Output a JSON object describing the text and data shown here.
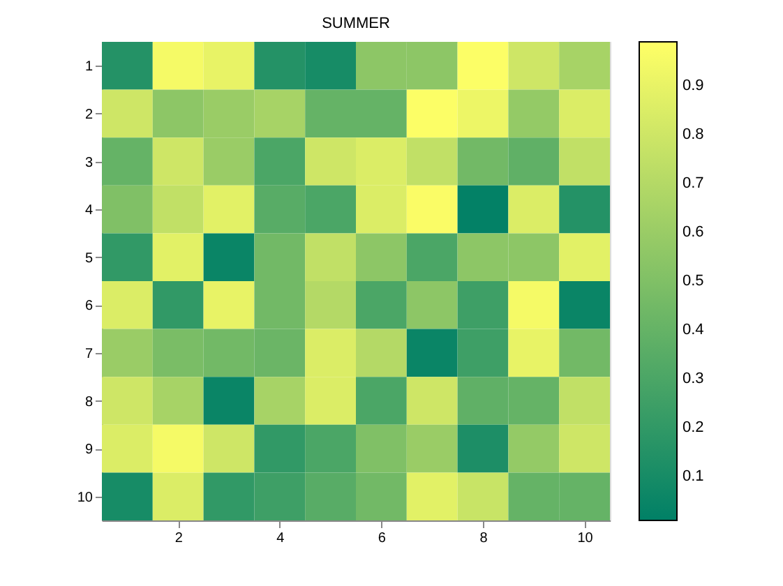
{
  "chart_data": {
    "type": "heatmap",
    "title": "SUMMER",
    "categories": [
      null,
      "2",
      null,
      "4",
      null,
      "6",
      null,
      "8",
      null,
      "10"
    ],
    "y_categories": [
      "1",
      "2",
      "3",
      "4",
      "5",
      "6",
      "7",
      "8",
      "9",
      "10"
    ],
    "cells": [
      [
        0.15,
        0.95,
        0.9,
        0.15,
        0.1,
        0.55,
        0.55,
        0.98,
        0.8,
        0.65
      ],
      [
        0.8,
        0.55,
        0.6,
        0.65,
        0.4,
        0.4,
        0.98,
        0.92,
        0.58,
        0.85
      ],
      [
        0.4,
        0.8,
        0.6,
        0.3,
        0.8,
        0.85,
        0.75,
        0.45,
        0.38,
        0.75
      ],
      [
        0.5,
        0.75,
        0.88,
        0.35,
        0.3,
        0.85,
        0.97,
        0.02,
        0.85,
        0.15
      ],
      [
        0.2,
        0.88,
        0.05,
        0.45,
        0.75,
        0.55,
        0.3,
        0.55,
        0.55,
        0.88
      ],
      [
        0.85,
        0.2,
        0.9,
        0.45,
        0.7,
        0.3,
        0.55,
        0.25,
        0.95,
        0.05
      ],
      [
        0.6,
        0.48,
        0.45,
        0.42,
        0.85,
        0.7,
        0.05,
        0.25,
        0.9,
        0.45
      ],
      [
        0.8,
        0.65,
        0.05,
        0.65,
        0.85,
        0.3,
        0.8,
        0.38,
        0.4,
        0.75
      ],
      [
        0.85,
        0.95,
        0.8,
        0.2,
        0.3,
        0.5,
        0.6,
        0.12,
        0.58,
        0.8
      ],
      [
        0.1,
        0.85,
        0.2,
        0.25,
        0.35,
        0.45,
        0.88,
        0.78,
        0.4,
        0.4
      ]
    ],
    "clim": [
      0.01,
      0.99
    ],
    "cticks": [
      0.1,
      0.2,
      0.3,
      0.4,
      0.5,
      0.6,
      0.7,
      0.8,
      0.9
    ]
  }
}
